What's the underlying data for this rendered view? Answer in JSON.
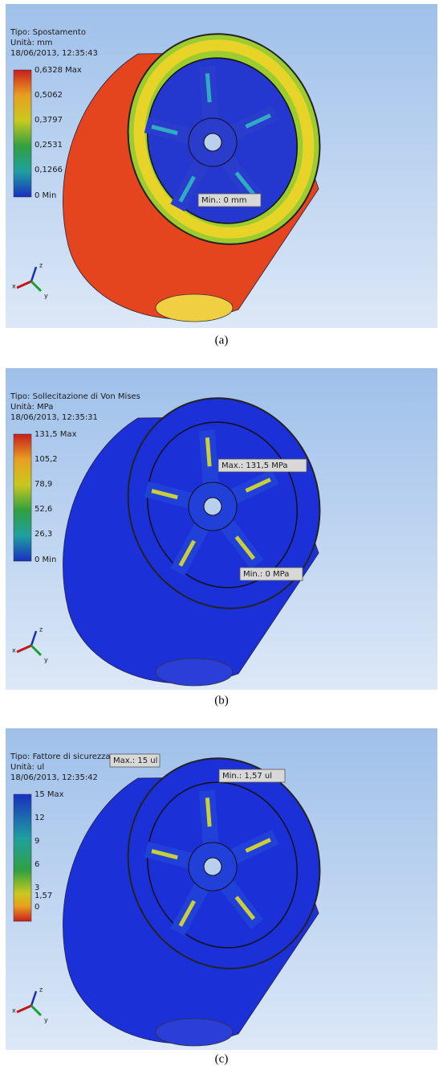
{
  "panels": [
    {
      "type_label": "Tipo: Spostamento",
      "unit_label": "Unità: mm",
      "timestamp": "18/06/2013, 12:35:43",
      "legend": [
        "0,6328 Max",
        "0,5062",
        "0,3797",
        "0,2531",
        "0,1266",
        "0 Min"
      ],
      "probes": [
        "Min.: 0 mm"
      ],
      "triad": [
        "z",
        "x",
        "y"
      ],
      "caption": "(a)"
    },
    {
      "type_label": "Tipo: Sollecitazione di Von Mises",
      "unit_label": "Unità: MPa",
      "timestamp": "18/06/2013, 12:35:31",
      "legend": [
        "131,5 Max",
        "105,2",
        "78,9",
        "52,6",
        "26,3",
        "0 Min"
      ],
      "probes": [
        "Max.: 131,5 MPa",
        "Min.: 0 MPa"
      ],
      "triad": [
        "z",
        "x",
        "y"
      ],
      "caption": "(b)"
    },
    {
      "type_label": "Tipo: Fattore di sicurezza",
      "unit_label": "Unità: ul",
      "timestamp": "18/06/2013, 12:35:42",
      "legend": [
        "15 Max",
        "12",
        "9",
        "6",
        "3",
        "1,57",
        "0"
      ],
      "probes": [
        "Max.: 15 ul",
        "Min.: 1,57 ul"
      ],
      "triad": [
        "z",
        "x",
        "y"
      ],
      "caption": "(c)"
    }
  ]
}
